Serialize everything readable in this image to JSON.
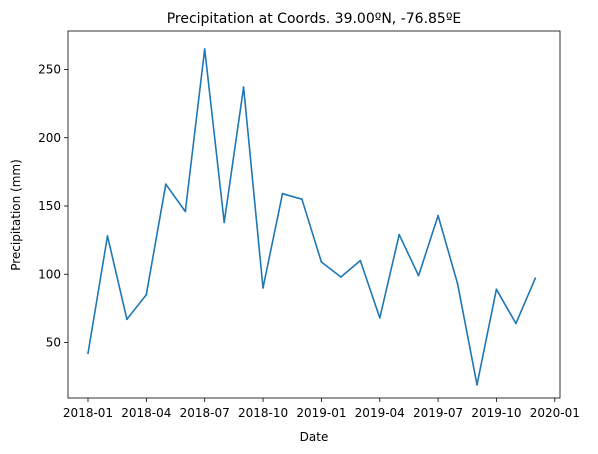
{
  "chart_data": {
    "type": "line",
    "title": "Precipitation at Coords. 39.00ºN, -76.85ºE",
    "xlabel": "Date",
    "ylabel": "Precipitation (mm)",
    "x_ticks": [
      "2018-01",
      "2018-04",
      "2018-07",
      "2018-10",
      "2019-01",
      "2019-04",
      "2019-07",
      "2019-10",
      "2020-01"
    ],
    "y_ticks": [
      50,
      100,
      150,
      200,
      250
    ],
    "grid": false,
    "series": [
      {
        "color": "#1f77b4",
        "x": [
          "2018-01",
          "2018-02",
          "2018-03",
          "2018-04",
          "2018-05",
          "2018-06",
          "2018-07",
          "2018-08",
          "2018-09",
          "2018-10",
          "2018-11",
          "2018-12",
          "2019-01",
          "2019-02",
          "2019-03",
          "2019-04",
          "2019-05",
          "2019-06",
          "2019-07",
          "2019-08",
          "2019-09",
          "2019-10",
          "2019-11",
          "2019-12"
        ],
        "values": [
          42,
          128,
          67,
          85,
          166,
          146,
          265,
          138,
          237,
          90,
          159,
          155,
          109,
          98,
          110,
          68,
          129,
          99,
          143,
          93,
          19,
          89,
          64,
          97
        ]
      }
    ]
  }
}
